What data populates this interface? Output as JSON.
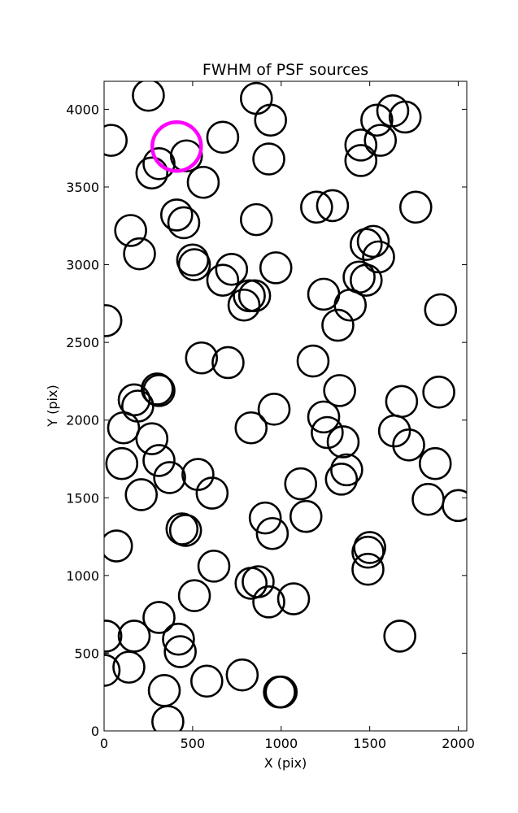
{
  "chart_data": {
    "type": "scatter",
    "title": "FWHM of PSF sources",
    "xlabel": "X (pix)",
    "ylabel": "Y (pix)",
    "xlim": [
      0,
      2048
    ],
    "ylim": [
      0,
      4180
    ],
    "x_ticks": [
      0,
      500,
      1000,
      1500,
      2000
    ],
    "y_ticks": [
      0,
      500,
      1000,
      1500,
      2000,
      2500,
      3000,
      3500,
      4000
    ],
    "grid": false,
    "legend": "none",
    "marker": "open-circle",
    "marker_color": "#000000",
    "highlight_color": "#ff00ff",
    "series": [
      {
        "values": [
          [
            250,
            4090
          ],
          [
            860,
            4070
          ],
          [
            940,
            3930
          ],
          [
            1630,
            3990
          ],
          [
            1700,
            3950
          ],
          [
            1540,
            3930
          ],
          [
            40,
            3800
          ],
          [
            670,
            3820
          ],
          [
            1450,
            3770
          ],
          [
            1560,
            3800
          ],
          [
            930,
            3680
          ],
          [
            1450,
            3670
          ],
          [
            310,
            3650
          ],
          [
            465,
            3700
          ],
          [
            270,
            3590
          ],
          [
            560,
            3530
          ],
          [
            1200,
            3370
          ],
          [
            1290,
            3380
          ],
          [
            1760,
            3370
          ],
          [
            410,
            3320
          ],
          [
            450,
            3270
          ],
          [
            860,
            3290
          ],
          [
            150,
            3220
          ],
          [
            200,
            3070
          ],
          [
            1480,
            3130
          ],
          [
            1520,
            3150
          ],
          [
            1550,
            3050
          ],
          [
            500,
            3030
          ],
          [
            510,
            3000
          ],
          [
            720,
            2970
          ],
          [
            970,
            2980
          ],
          [
            1440,
            2920
          ],
          [
            1480,
            2900
          ],
          [
            670,
            2900
          ],
          [
            820,
            2800
          ],
          [
            850,
            2800
          ],
          [
            790,
            2740
          ],
          [
            1240,
            2810
          ],
          [
            1390,
            2740
          ],
          [
            1900,
            2710
          ],
          [
            10,
            2640
          ],
          [
            1320,
            2610
          ],
          [
            550,
            2400
          ],
          [
            700,
            2370
          ],
          [
            1180,
            2380
          ],
          [
            300,
            2200
          ],
          [
            310,
            2190
          ],
          [
            1330,
            2190
          ],
          [
            1890,
            2180
          ],
          [
            170,
            2130
          ],
          [
            190,
            2090
          ],
          [
            1680,
            2120
          ],
          [
            960,
            2070
          ],
          [
            1240,
            2020
          ],
          [
            110,
            1950
          ],
          [
            830,
            1950
          ],
          [
            1260,
            1920
          ],
          [
            1640,
            1930
          ],
          [
            270,
            1880
          ],
          [
            1350,
            1860
          ],
          [
            1720,
            1840
          ],
          [
            310,
            1740
          ],
          [
            100,
            1720
          ],
          [
            1870,
            1720
          ],
          [
            370,
            1630
          ],
          [
            530,
            1650
          ],
          [
            1370,
            1680
          ],
          [
            1340,
            1620
          ],
          [
            1110,
            1590
          ],
          [
            210,
            1520
          ],
          [
            610,
            1530
          ],
          [
            1830,
            1490
          ],
          [
            2000,
            1450
          ],
          [
            910,
            1370
          ],
          [
            1140,
            1380
          ],
          [
            440,
            1300
          ],
          [
            460,
            1290
          ],
          [
            950,
            1270
          ],
          [
            70,
            1190
          ],
          [
            1500,
            1180
          ],
          [
            1490,
            1150
          ],
          [
            1490,
            1040
          ],
          [
            620,
            1060
          ],
          [
            830,
            950
          ],
          [
            870,
            960
          ],
          [
            510,
            870
          ],
          [
            930,
            830
          ],
          [
            1070,
            850
          ],
          [
            310,
            730
          ],
          [
            10,
            610
          ],
          [
            170,
            610
          ],
          [
            420,
            590
          ],
          [
            430,
            510
          ],
          [
            1670,
            610
          ],
          [
            140,
            410
          ],
          [
            0,
            390
          ],
          [
            580,
            320
          ],
          [
            780,
            360
          ],
          [
            340,
            260
          ],
          [
            990,
            250
          ],
          [
            1000,
            250
          ],
          [
            360,
            60
          ]
        ]
      },
      {
        "values": [
          [
            410,
            3760
          ]
        ]
      }
    ]
  }
}
